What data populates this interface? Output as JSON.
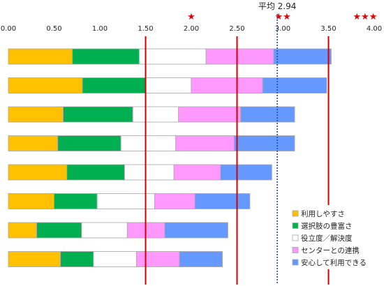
{
  "chart_data": {
    "type": "bar",
    "orientation": "horizontal",
    "stacked": true,
    "xlim": [
      0,
      4.0
    ],
    "x_ticks": [
      "0.00",
      "0.50",
      "1.00",
      "1.50",
      "2.00",
      "2.50",
      "3.00",
      "3.50",
      "4.00"
    ],
    "grid": false,
    "legend_position": "bottom-right",
    "series": [
      {
        "name": "利用しやすさ",
        "color": "#ffc000",
        "values": [
          0.7,
          0.81,
          0.6,
          0.54,
          0.64,
          0.5,
          0.31,
          0.57
        ]
      },
      {
        "name": "選択肢の豊富さ",
        "color": "#00b050",
        "values": [
          0.73,
          0.69,
          0.76,
          0.69,
          0.63,
          0.47,
          0.49,
          0.36
        ]
      },
      {
        "name": "役立度／解決度",
        "color": "#ffffff",
        "values": [
          0.73,
          0.5,
          0.5,
          0.6,
          0.54,
          0.63,
          0.5,
          0.47
        ]
      },
      {
        "name": "センターとの連携",
        "color": "#ff99ff",
        "values": [
          0.74,
          0.78,
          0.68,
          0.64,
          0.51,
          0.44,
          0.41,
          0.47
        ]
      },
      {
        "name": "安心して利用できる",
        "color": "#6699ff",
        "values": [
          0.63,
          0.7,
          0.59,
          0.66,
          0.56,
          0.6,
          0.69,
          0.47
        ]
      }
    ],
    "reference_lines": [
      {
        "value": 1.5,
        "style": "solid",
        "color": "#d40000",
        "label": ""
      },
      {
        "value": 2.5,
        "style": "solid",
        "color": "#d40000",
        "label": ""
      },
      {
        "value": 3.5,
        "style": "solid",
        "color": "#d40000",
        "label": ""
      },
      {
        "value": 2.94,
        "style": "dotted",
        "color": "#1f4e9e",
        "label": "平均 2.94"
      }
    ],
    "star_labels": [
      {
        "value": 2.0,
        "text": "★"
      },
      {
        "value": 3.0,
        "text": "★★"
      },
      {
        "value": 3.9,
        "text": "★★★"
      }
    ],
    "star_color": "#e60000"
  }
}
